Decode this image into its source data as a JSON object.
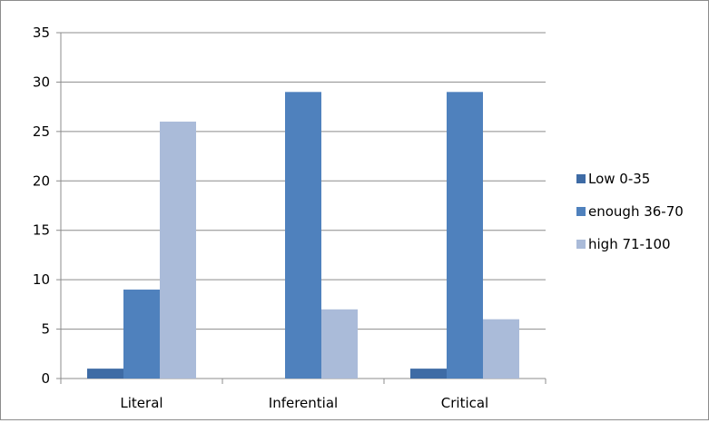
{
  "chart_data": {
    "type": "bar",
    "categories": [
      "Literal",
      "Inferential",
      "Critical"
    ],
    "series": [
      {
        "name": "Low 0-35",
        "values": [
          1,
          0,
          1
        ],
        "color": "#3e6ba5"
      },
      {
        "name": "enough 36-70",
        "values": [
          9,
          29,
          29
        ],
        "color": "#4f81bd"
      },
      {
        "name": "high 71-100",
        "values": [
          26,
          7,
          6
        ],
        "color": "#aabbd9"
      }
    ],
    "ylim": [
      0,
      35
    ],
    "yticks": [
      0,
      5,
      10,
      15,
      20,
      25,
      30,
      35
    ],
    "grid": true,
    "legend_position": "right"
  }
}
